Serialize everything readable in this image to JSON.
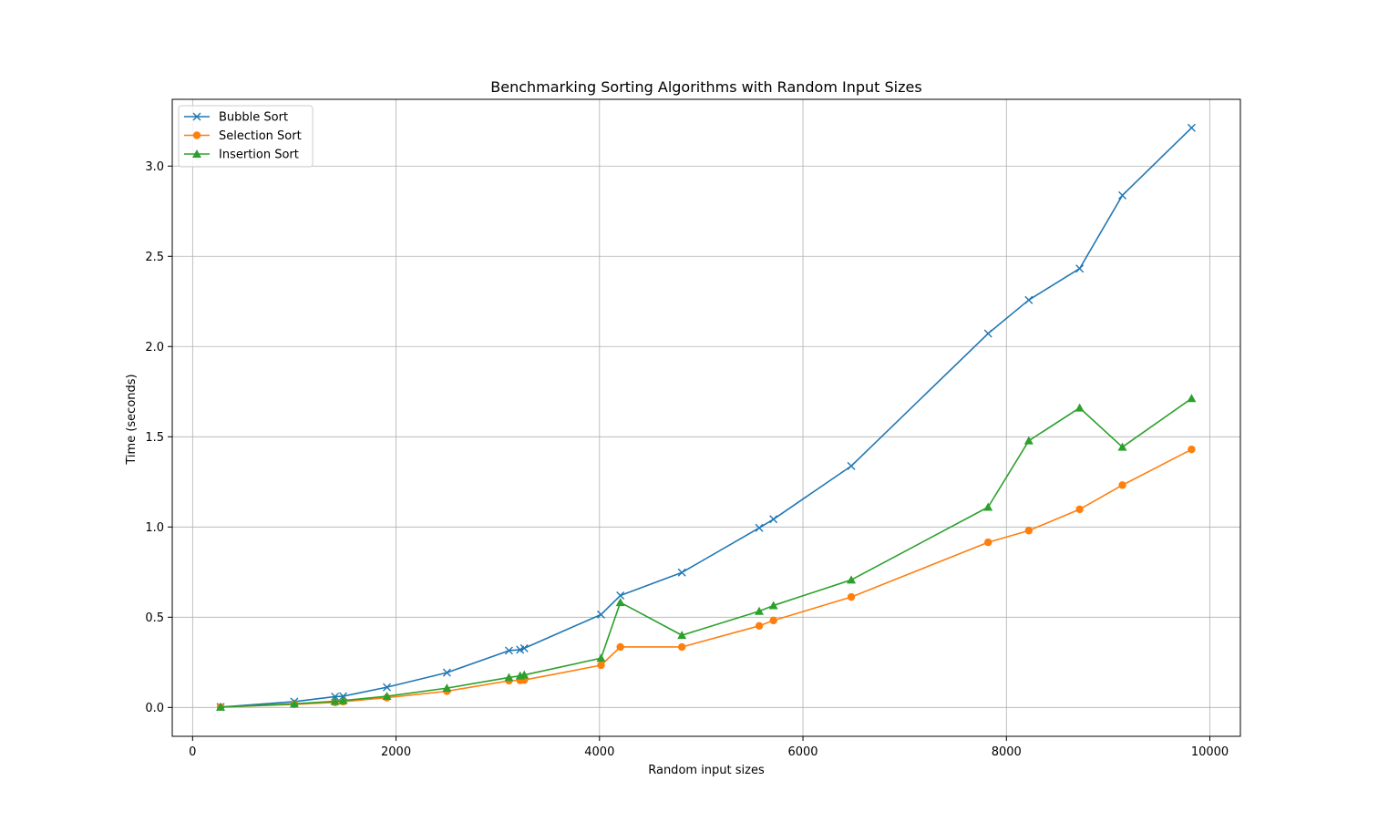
{
  "chart_data": {
    "type": "line",
    "title": "Benchmarking Sorting Algorithms with Random Input Sizes",
    "xlabel": "Random input sizes",
    "ylabel": "Time (seconds)",
    "xlim": [
      -200,
      10300
    ],
    "ylim": [
      -0.16,
      3.37
    ],
    "xticks": [
      0,
      2000,
      4000,
      6000,
      8000,
      10000
    ],
    "xtick_labels": [
      "0",
      "2000",
      "4000",
      "6000",
      "8000",
      "10000"
    ],
    "yticks": [
      0.0,
      0.5,
      1.0,
      1.5,
      2.0,
      2.5,
      3.0
    ],
    "ytick_labels": [
      "0.0",
      "0.5",
      "1.0",
      "1.5",
      "2.0",
      "2.5",
      "3.0"
    ],
    "grid": true,
    "legend_position": "top-left",
    "x": [
      275,
      1000,
      1400,
      1480,
      1910,
      2500,
      3110,
      3220,
      3260,
      4015,
      4205,
      4810,
      5570,
      5710,
      6475,
      7820,
      8220,
      8720,
      9140,
      9820
    ],
    "series": [
      {
        "name": "Bubble Sort",
        "color": "#1f77b4",
        "marker": "x",
        "values": [
          0.002,
          0.032,
          0.06,
          0.062,
          0.112,
          0.193,
          0.315,
          0.32,
          0.328,
          0.515,
          0.62,
          0.748,
          0.995,
          1.043,
          1.338,
          2.072,
          2.258,
          2.432,
          2.838,
          3.212
        ]
      },
      {
        "name": "Selection Sort",
        "color": "#ff7f0e",
        "marker": "circle",
        "values": [
          0.002,
          0.017,
          0.028,
          0.032,
          0.054,
          0.09,
          0.148,
          0.15,
          0.152,
          0.234,
          0.335,
          0.335,
          0.452,
          0.482,
          0.612,
          0.915,
          0.98,
          1.098,
          1.232,
          1.43
        ]
      },
      {
        "name": "Insertion Sort",
        "color": "#2ca02c",
        "marker": "triangle",
        "values": [
          0.002,
          0.02,
          0.034,
          0.038,
          0.062,
          0.107,
          0.166,
          0.175,
          0.18,
          0.273,
          0.582,
          0.4,
          0.533,
          0.565,
          0.707,
          1.11,
          1.478,
          1.66,
          1.443,
          1.712
        ]
      }
    ]
  }
}
